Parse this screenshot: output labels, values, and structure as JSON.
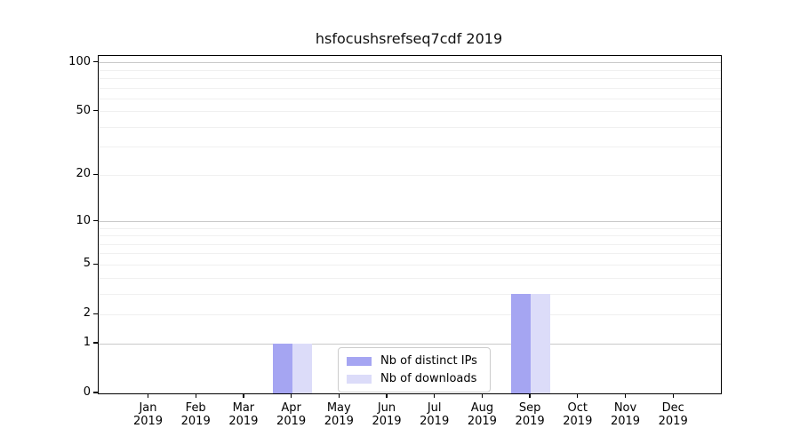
{
  "chart_data": {
    "type": "bar",
    "title": "hsfocushsrefseq7cdf 2019",
    "year_label": "2019",
    "months": [
      "Jan",
      "Feb",
      "Mar",
      "Apr",
      "May",
      "Jun",
      "Jul",
      "Aug",
      "Sep",
      "Oct",
      "Nov",
      "Dec"
    ],
    "series": [
      {
        "name": "Nb of distinct IPs",
        "color": "#a5a5f2",
        "values": [
          0,
          0,
          0,
          1,
          0,
          0,
          0,
          0,
          3,
          0,
          0,
          0
        ]
      },
      {
        "name": "Nb of downloads",
        "color": "#dcdcf9",
        "values": [
          0,
          0,
          0,
          1,
          0,
          0,
          0,
          0,
          3,
          0,
          0,
          0
        ]
      }
    ],
    "yscale": "log10(1+value)",
    "yticks": [
      0,
      1,
      2,
      5,
      10,
      20,
      50,
      100
    ],
    "ylim": [
      0,
      110
    ],
    "grid_major": [
      1,
      10,
      100
    ],
    "grid_minor": [
      2,
      3,
      4,
      5,
      6,
      7,
      8,
      9,
      20,
      30,
      40,
      50,
      60,
      70,
      80,
      90
    ],
    "legend_position": "inside lower middle",
    "colors": {
      "major_grid": "#c9c9c9",
      "minor_grid": "#f0f0f0",
      "spine": "#000000",
      "text": "#000000",
      "background": "#ffffff"
    }
  }
}
